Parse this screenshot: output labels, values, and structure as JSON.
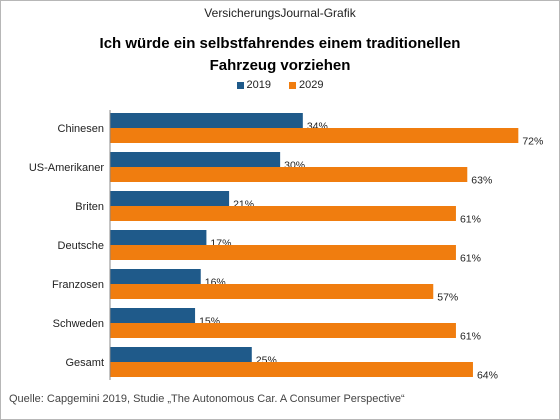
{
  "header": {
    "text": "VersicherungsJournal-Grafik"
  },
  "chart_data": {
    "type": "bar",
    "orientation": "horizontal",
    "title_lines": [
      "Ich würde ein selbstfahrendes  einem traditionellen",
      "Fahrzeug vorziehen"
    ],
    "categories": [
      "Chinesen",
      "US-Amerikaner",
      "Briten",
      "Deutsche",
      "Franzosen",
      "Schweden",
      "Gesamt"
    ],
    "series": [
      {
        "name": "2019",
        "color": "#1f5a8a",
        "values": [
          34,
          30,
          21,
          17,
          16,
          15,
          25
        ],
        "labels": [
          "34%",
          "30%",
          "21%",
          "17%",
          "16%",
          "15%",
          "25%"
        ]
      },
      {
        "name": "2029",
        "color": "#f07d0f",
        "values": [
          72,
          63,
          61,
          61,
          57,
          61,
          64
        ],
        "labels": [
          "72%",
          "63%",
          "61%",
          "61%",
          "57%",
          "61%",
          "64%"
        ]
      }
    ],
    "xlim": [
      0,
      73
    ],
    "grid": false,
    "legend_position": "top-center"
  },
  "source": {
    "text": "Quelle: Capgemini 2019, Studie „The Autonomous Car. A Consumer Perspective“"
  }
}
